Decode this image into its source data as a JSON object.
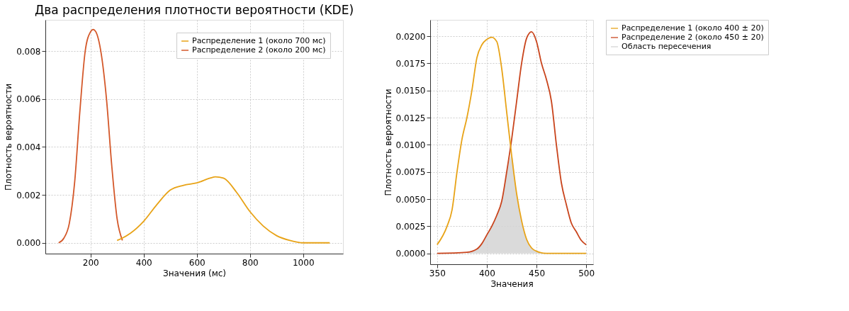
{
  "chart_data": [
    {
      "type": "line",
      "title": "Два распределения плотности вероятности (KDE)",
      "xlabel": "Значения (мс)",
      "ylabel": "Плотность вероятности",
      "xlim": [
        30,
        1150
      ],
      "xticks": [
        200,
        400,
        600,
        800,
        1000
      ],
      "ylim": [
        -0.00045,
        0.0093
      ],
      "yticks": [
        {
          "value": 0,
          "label": "0.000"
        },
        0.002,
        0.004,
        0.006,
        0.008
      ],
      "grid": true,
      "legend": "top right",
      "line_style": "solid",
      "marker": "none",
      "series": [
        {
          "name": "Распределение 1 (около 700 мс)",
          "color": "#e8a317",
          "x": [
            300,
            320,
            350,
            400,
            450,
            500,
            550,
            600,
            650,
            670,
            700,
            750,
            800,
            850,
            900,
            950,
            1000,
            1100
          ],
          "values": [
            0.0001,
            0.0002,
            0.0004,
            0.0009,
            0.0016,
            0.0022,
            0.0024,
            0.0025,
            0.0027,
            0.00275,
            0.0027,
            0.0021,
            0.0013,
            0.0007,
            0.0003,
            0.0001,
            0,
            0
          ]
        },
        {
          "name": "Распределение 2 (около 200 мс)",
          "color": "#d4582a",
          "x": [
            80,
            100,
            120,
            140,
            160,
            180,
            200,
            210,
            220,
            240,
            260,
            280,
            300,
            320
          ],
          "values": [
            0,
            0.0002,
            0.0008,
            0.0025,
            0.0055,
            0.008,
            0.0088,
            0.0089,
            0.0088,
            0.0079,
            0.006,
            0.0032,
            0.001,
            0.0001
          ]
        }
      ]
    },
    {
      "type": "line",
      "xlabel": "Значения",
      "ylabel": "Плотность вероятности",
      "xlim": [
        343,
        507
      ],
      "xticks": [
        350,
        400,
        450,
        500
      ],
      "ylim": [
        -0.001,
        0.0215
      ],
      "yticks": [
        {
          "value": 0,
          "label": "0.0000"
        },
        {
          "value": 0.0025,
          "label": "0.0025"
        },
        {
          "value": 0.005,
          "label": "0.0050"
        },
        {
          "value": 0.0075,
          "label": "0.0075"
        },
        {
          "value": 0.01,
          "label": "0.0100"
        },
        {
          "value": 0.0125,
          "label": "0.0125"
        },
        {
          "value": 0.015,
          "label": "0.0150"
        },
        {
          "value": 0.0175,
          "label": "0.0175"
        },
        {
          "value": 0.02,
          "label": "0.0200"
        }
      ],
      "grid": true,
      "legend": "right",
      "line_style": "solid",
      "marker": "none",
      "series": [
        {
          "name": "Распределение 1 (около 400 ± 20)",
          "color": "#e8a317",
          "x": [
            350,
            360,
            365,
            370,
            375,
            380,
            385,
            390,
            395,
            400,
            405,
            410,
            415,
            420,
            425,
            430,
            435,
            440,
            445,
            450,
            460,
            470,
            500
          ],
          "values": [
            0.0008,
            0.0025,
            0.004,
            0.0075,
            0.0105,
            0.0125,
            0.015,
            0.018,
            0.0192,
            0.0197,
            0.0199,
            0.0195,
            0.017,
            0.013,
            0.009,
            0.0055,
            0.003,
            0.0013,
            0.0005,
            0.0002,
            0,
            0,
            0
          ]
        },
        {
          "name": "Распределение 2 (около 450 ± 20)",
          "color": "#c9441c",
          "x": [
            350,
            380,
            390,
            395,
            400,
            405,
            410,
            415,
            420,
            425,
            430,
            435,
            440,
            445,
            450,
            455,
            460,
            465,
            470,
            475,
            480,
            485,
            490,
            495,
            500
          ],
          "values": [
            0,
            0.0001,
            0.0004,
            0.0009,
            0.0017,
            0.0025,
            0.0035,
            0.0048,
            0.0075,
            0.0105,
            0.014,
            0.0175,
            0.0198,
            0.0204,
            0.0195,
            0.0175,
            0.016,
            0.014,
            0.01,
            0.0065,
            0.0045,
            0.0028,
            0.002,
            0.0012,
            0.0008
          ]
        },
        {
          "name": "Область пересечения",
          "type": "area",
          "color": "#d3d3d3",
          "x": [
            380,
            390,
            395,
            400,
            405,
            410,
            415,
            420,
            425,
            430,
            435,
            440,
            445,
            450,
            460,
            470
          ],
          "values": [
            0.0001,
            0.0004,
            0.0009,
            0.0017,
            0.0025,
            0.0035,
            0.0048,
            0.0075,
            0.009,
            0.0055,
            0.003,
            0.0013,
            0.0005,
            0.0002,
            0,
            0
          ]
        }
      ]
    }
  ]
}
